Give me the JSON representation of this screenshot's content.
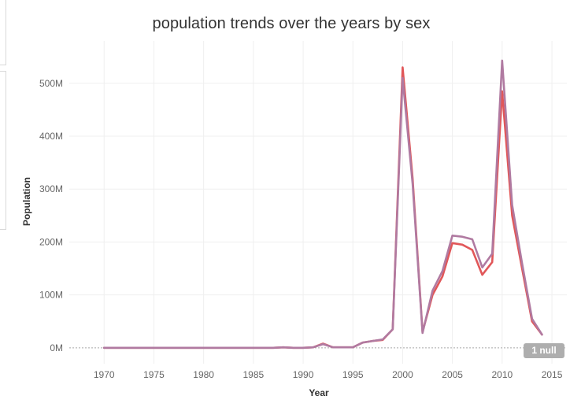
{
  "chart_data": {
    "type": "line",
    "title": "population trends over the years by sex",
    "xlabel": "Year",
    "ylabel": "Population",
    "xlim": [
      1966.5,
      2016.5
    ],
    "ylim": [
      -30,
      580
    ],
    "x_ticks": [
      1970,
      1975,
      1980,
      1985,
      1990,
      1995,
      2000,
      2005,
      2010,
      2015
    ],
    "y_ticks": [
      0,
      100,
      200,
      300,
      400,
      500
    ],
    "y_tick_labels": [
      "0M",
      "100M",
      "200M",
      "300M",
      "400M",
      "500M"
    ],
    "grid": true,
    "x": [
      1970,
      1975,
      1980,
      1985,
      1987,
      1988,
      1989,
      1990,
      1991,
      1992,
      1993,
      1994,
      1995,
      1996,
      1997,
      1998,
      1999,
      2000,
      2001,
      2002,
      2003,
      2004,
      2005,
      2006,
      2007,
      2008,
      2009,
      2010,
      2011,
      2012,
      2013,
      2014
    ],
    "series": [
      {
        "color": "#e15759",
        "values": [
          0,
          0,
          0,
          0,
          0,
          1,
          0,
          0,
          1,
          8,
          1,
          1,
          1,
          10,
          13,
          15,
          35,
          530,
          320,
          30,
          100,
          135,
          198,
          195,
          185,
          138,
          162,
          485,
          250,
          150,
          50,
          25
        ]
      },
      {
        "color": "#b07aa1",
        "values": [
          0,
          0,
          0,
          0,
          0,
          1,
          0,
          0,
          1,
          7,
          1,
          1,
          1,
          10,
          13,
          16,
          35,
          510,
          310,
          28,
          108,
          145,
          212,
          210,
          205,
          152,
          178,
          543,
          270,
          160,
          55,
          25
        ]
      }
    ],
    "null_badge": "1 null"
  }
}
